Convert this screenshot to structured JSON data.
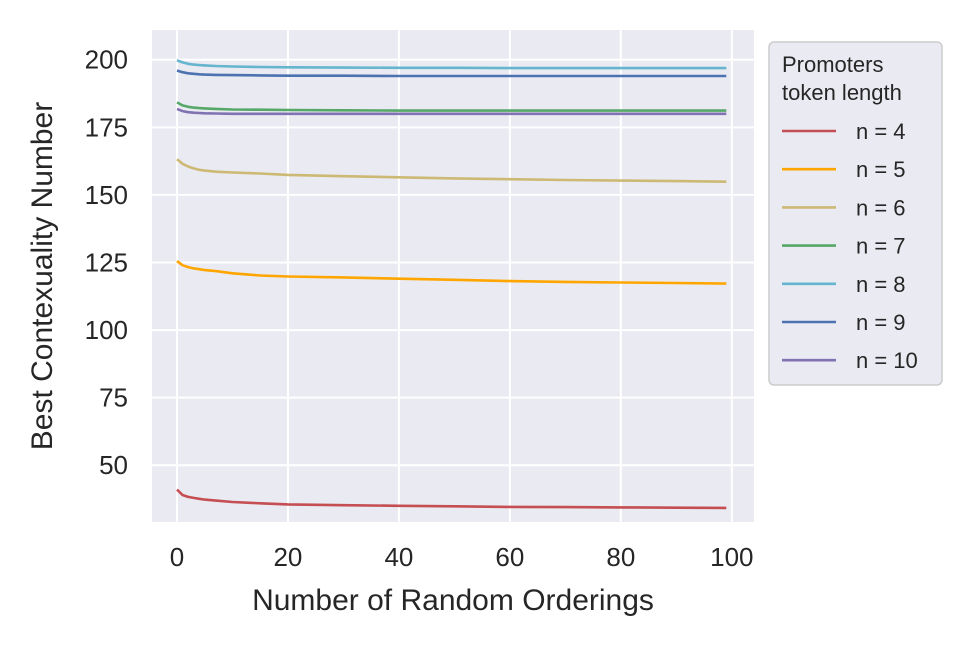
{
  "chart_data": {
    "type": "line",
    "xlabel": "Number of Random Orderings",
    "ylabel": "Best Contexuality Number",
    "xlim": [
      -4.5,
      104
    ],
    "ylim": [
      29,
      211
    ],
    "xticks": [
      0,
      20,
      40,
      60,
      80,
      100
    ],
    "yticks": [
      50,
      75,
      100,
      125,
      150,
      175,
      200
    ],
    "grid": true,
    "legend": {
      "title_lines": [
        "Promoters",
        "token length"
      ],
      "placement": "outside-right-top"
    },
    "x": [
      0,
      1,
      2,
      3,
      4,
      5,
      7,
      10,
      15,
      20,
      30,
      40,
      50,
      60,
      70,
      80,
      90,
      99
    ],
    "series": [
      {
        "name": "n = 4",
        "color": "#c44e52",
        "values": [
          41,
          39,
          38.3,
          37.9,
          37.6,
          37.3,
          36.9,
          36.4,
          35.9,
          35.5,
          35.2,
          35.0,
          34.8,
          34.6,
          34.5,
          34.4,
          34.3,
          34.2
        ]
      },
      {
        "name": "n = 5",
        "color": "#ffa500",
        "values": [
          125.5,
          124,
          123.3,
          122.8,
          122.5,
          122.2,
          121.8,
          121.0,
          120.2,
          119.8,
          119.5,
          119.0,
          118.6,
          118.1,
          117.8,
          117.6,
          117.4,
          117.2
        ]
      },
      {
        "name": "n = 6",
        "color": "#ccb974",
        "values": [
          163.2,
          161.5,
          160.5,
          159.8,
          159.3,
          159.0,
          158.6,
          158.3,
          157.9,
          157.4,
          156.9,
          156.5,
          156.1,
          155.8,
          155.5,
          155.3,
          155.1,
          154.9
        ]
      },
      {
        "name": "n = 7",
        "color": "#55a868",
        "values": [
          184.2,
          183.1,
          182.6,
          182.3,
          182.1,
          182.0,
          181.8,
          181.6,
          181.5,
          181.4,
          181.3,
          181.2,
          181.2,
          181.2,
          181.2,
          181.2,
          181.2,
          181.2
        ]
      },
      {
        "name": "n = 8",
        "color": "#64b5cd",
        "values": [
          199.8,
          199.0,
          198.5,
          198.2,
          198.0,
          197.9,
          197.7,
          197.5,
          197.3,
          197.2,
          197.1,
          197.0,
          197.0,
          196.9,
          196.9,
          196.9,
          196.9,
          196.9
        ]
      },
      {
        "name": "n = 9",
        "color": "#4c72b0",
        "values": [
          196.0,
          195.4,
          195.0,
          194.8,
          194.6,
          194.5,
          194.4,
          194.3,
          194.2,
          194.1,
          194.1,
          194.0,
          194.0,
          194.0,
          194.0,
          194.0,
          194.0,
          194.0
        ]
      },
      {
        "name": "n = 10",
        "color": "#8172b2",
        "values": [
          181.8,
          181.0,
          180.6,
          180.4,
          180.3,
          180.2,
          180.1,
          180.0,
          180.0,
          180.0,
          180.0,
          180.0,
          180.0,
          180.0,
          180.0,
          180.0,
          180.0,
          180.0
        ]
      }
    ]
  }
}
